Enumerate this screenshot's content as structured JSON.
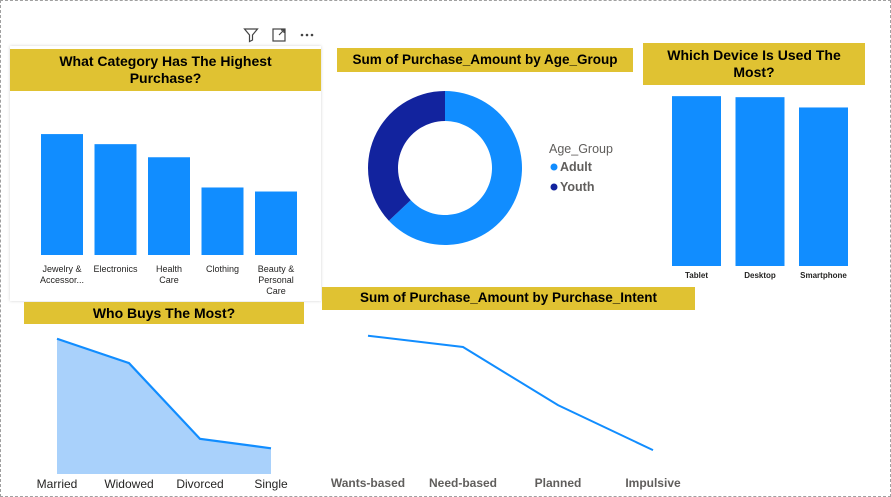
{
  "toolbar": {
    "icons": [
      "filter-icon",
      "focus-mode-icon",
      "more-options-icon"
    ]
  },
  "colors": {
    "title_bar": "#e0c232",
    "bar": "#118dff",
    "adult": "#118dff",
    "youth": "#12239e",
    "area_fill": "#a9d1fb",
    "line": "#118dff"
  },
  "chart_data": [
    {
      "id": "category",
      "type": "bar",
      "title": "What Category Has The Highest Purchase?",
      "categories": [
        "Jewelry & Accessor...",
        "Electronics",
        "Health Care",
        "Clothing",
        "Beauty & Personal Care"
      ],
      "values": [
        120,
        110,
        97,
        67,
        63
      ],
      "ylim": [
        0,
        130
      ]
    },
    {
      "id": "age_group",
      "type": "pie",
      "title": "Sum of Purchase_Amount by Age_Group",
      "legend_title": "Age_Group",
      "labels": [
        "Adult",
        "Youth"
      ],
      "values": [
        63,
        37
      ],
      "legend_position": "right"
    },
    {
      "id": "device",
      "type": "bar",
      "title": "Which Device Is Used The Most?",
      "categories": [
        "Tablet",
        "Desktop",
        "Smartphone"
      ],
      "values": [
        165,
        164,
        154
      ],
      "ylim": [
        0,
        170
      ]
    },
    {
      "id": "marital",
      "type": "area",
      "title": "Who Buys The Most?",
      "categories": [
        "Married",
        "Widowed",
        "Divorced",
        "Single"
      ],
      "values": [
        100,
        82,
        26,
        19
      ],
      "ylim": [
        0,
        105
      ]
    },
    {
      "id": "intent",
      "type": "line",
      "title": "Sum of Purchase_Amount by Purchase_Intent",
      "categories": [
        "Wants-based",
        "Need-based",
        "Planned",
        "Impulsive"
      ],
      "values": [
        100,
        94,
        63,
        39
      ],
      "ylim": [
        30,
        110
      ]
    }
  ]
}
